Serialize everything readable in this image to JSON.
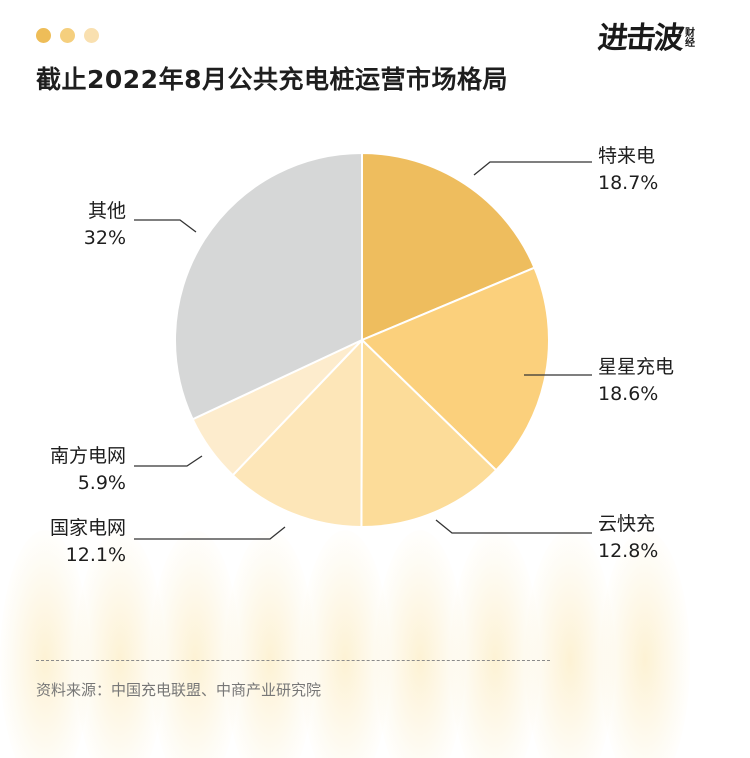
{
  "title": "截止2022年8月公共充电桩运营市场格局",
  "logo": {
    "main": "进击波",
    "sub_top": "财",
    "sub_bottom": "经"
  },
  "source": "资料来源：中国充电联盟、中商产业研究院",
  "colors": {
    "dots": [
      "#eebd58",
      "#f5cf7e",
      "#f9e0b0"
    ],
    "text": "#1e1e1e",
    "leader": "#333333"
  },
  "chart_data": {
    "type": "pie",
    "title": "截止2022年8月公共充电桩运营市场格局",
    "start_angle_deg": 0,
    "direction": "clockwise",
    "slices": [
      {
        "label": "特来电",
        "value": 18.7,
        "value_label": "18.7%",
        "color": "#eebd5e"
      },
      {
        "label": "星星充电",
        "value": 18.6,
        "value_label": "18.6%",
        "color": "#fbd07c"
      },
      {
        "label": "云快充",
        "value": 12.8,
        "value_label": "12.8%",
        "color": "#fcdc99"
      },
      {
        "label": "国家电网",
        "value": 12.1,
        "value_label": "12.1%",
        "color": "#fde6b8"
      },
      {
        "label": "南方电网",
        "value": 5.9,
        "value_label": "5.9%",
        "color": "#fdeccd"
      },
      {
        "label": "其他",
        "value": 32,
        "value_label": "32%",
        "color": "#d6d7d7"
      }
    ]
  }
}
